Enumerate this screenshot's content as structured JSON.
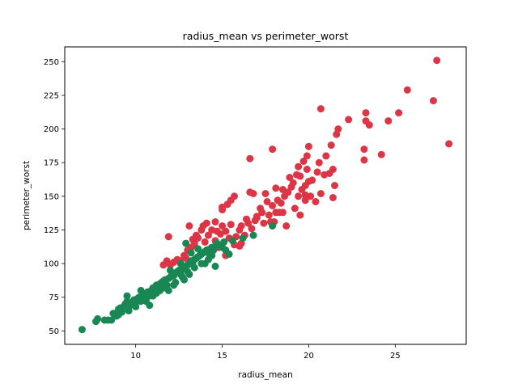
{
  "chart_data": {
    "type": "scatter",
    "title": "radius_mean vs perimeter_worst",
    "xlabel": "radius_mean",
    "ylabel": "perimeter_worst",
    "xlim": [
      5.9,
      29.1
    ],
    "ylim": [
      40,
      261
    ],
    "xticks": [
      10,
      15,
      20,
      25
    ],
    "yticks": [
      50,
      75,
      100,
      125,
      150,
      175,
      200,
      225,
      250
    ],
    "grid": false,
    "series": [
      {
        "color": "#dc3545",
        "points": [
          [
            27.4,
            251
          ],
          [
            25.7,
            229
          ],
          [
            27.2,
            221
          ],
          [
            28.1,
            189
          ],
          [
            25.2,
            212
          ],
          [
            24.6,
            206
          ],
          [
            24.2,
            181
          ],
          [
            23.3,
            212
          ],
          [
            23.5,
            203
          ],
          [
            23.3,
            206
          ],
          [
            23.2,
            185
          ],
          [
            23.2,
            177
          ],
          [
            22.3,
            207
          ],
          [
            21.7,
            200
          ],
          [
            21.6,
            196
          ],
          [
            21.3,
            188
          ],
          [
            21.0,
            180
          ],
          [
            20.7,
            215
          ],
          [
            20.6,
            175
          ],
          [
            20.5,
            168
          ],
          [
            20.9,
            166
          ],
          [
            21.2,
            167
          ],
          [
            21.4,
            170
          ],
          [
            21.5,
            158
          ],
          [
            21.4,
            149
          ],
          [
            20.2,
            162
          ],
          [
            20.0,
            161
          ],
          [
            19.8,
            158
          ],
          [
            19.9,
            170
          ],
          [
            19.9,
            180
          ],
          [
            20.0,
            187
          ],
          [
            19.7,
            176
          ],
          [
            19.5,
            165
          ],
          [
            19.3,
            166
          ],
          [
            19.1,
            160
          ],
          [
            19.4,
            172
          ],
          [
            19.6,
            155
          ],
          [
            19.4,
            150
          ],
          [
            19.8,
            151
          ],
          [
            20.1,
            150
          ],
          [
            20.4,
            146
          ],
          [
            20.7,
            152
          ],
          [
            19.0,
            157
          ],
          [
            18.9,
            164
          ],
          [
            18.8,
            153
          ],
          [
            18.6,
            150
          ],
          [
            18.4,
            145
          ],
          [
            18.2,
            147
          ],
          [
            18.1,
            138
          ],
          [
            17.9,
            143
          ],
          [
            17.7,
            136
          ],
          [
            17.5,
            152
          ],
          [
            17.6,
            146
          ],
          [
            17.3,
            138
          ],
          [
            17.2,
            141
          ],
          [
            17.0,
            135
          ],
          [
            16.9,
            132
          ],
          [
            16.7,
            126
          ],
          [
            16.5,
            130
          ],
          [
            16.3,
            121
          ],
          [
            16.1,
            128
          ],
          [
            16.0,
            125
          ],
          [
            16.1,
            115
          ],
          [
            16.8,
            152
          ],
          [
            16.6,
            153
          ],
          [
            17.9,
            185
          ],
          [
            16.6,
            178
          ],
          [
            18.1,
            156
          ],
          [
            18.3,
            138
          ],
          [
            18.5,
            155
          ],
          [
            19.2,
            141
          ],
          [
            19.5,
            136
          ],
          [
            19.8,
            147
          ],
          [
            18.0,
            131
          ],
          [
            18.7,
            128
          ],
          [
            18.5,
            138
          ],
          [
            17.4,
            130
          ],
          [
            17.8,
            131
          ],
          [
            17.0,
            134
          ],
          [
            16.4,
            133
          ],
          [
            15.8,
            120
          ],
          [
            15.7,
            114
          ],
          [
            15.4,
            119
          ],
          [
            15.2,
            124
          ],
          [
            15.5,
            129
          ],
          [
            15.0,
            128
          ],
          [
            14.9,
            122
          ],
          [
            14.7,
            124
          ],
          [
            14.6,
            117
          ],
          [
            15.0,
            140
          ],
          [
            15.3,
            144
          ],
          [
            15.5,
            147
          ],
          [
            15.7,
            150
          ],
          [
            14.6,
            131
          ],
          [
            14.4,
            125
          ],
          [
            14.2,
            121
          ],
          [
            14.0,
            116
          ],
          [
            13.8,
            125
          ],
          [
            13.9,
            128
          ],
          [
            13.6,
            119
          ],
          [
            13.4,
            115
          ],
          [
            13.2,
            112
          ],
          [
            13.0,
            110
          ],
          [
            12.8,
            106
          ],
          [
            12.6,
            102
          ],
          [
            12.4,
            103
          ],
          [
            12.2,
            101
          ],
          [
            12.0,
            99
          ],
          [
            11.8,
            102
          ],
          [
            11.9,
            120
          ],
          [
            13.1,
            128
          ],
          [
            13.5,
            121
          ],
          [
            14.8,
            112
          ],
          [
            15.2,
            106
          ],
          [
            16.0,
            113
          ],
          [
            11.6,
            99
          ],
          [
            12.9,
            104
          ],
          [
            13.3,
            118
          ],
          [
            14.1,
            130
          ],
          [
            15.0,
            142
          ]
        ]
      },
      {
        "color": "#198754",
        "points": [
          [
            6.9,
            51
          ],
          [
            7.7,
            57
          ],
          [
            7.8,
            59
          ],
          [
            8.2,
            58
          ],
          [
            8.6,
            58
          ],
          [
            8.7,
            63
          ],
          [
            8.8,
            62
          ],
          [
            8.9,
            61
          ],
          [
            9.0,
            66
          ],
          [
            9.1,
            67
          ],
          [
            9.2,
            64
          ],
          [
            9.3,
            68
          ],
          [
            9.4,
            70
          ],
          [
            9.5,
            72
          ],
          [
            9.6,
            65
          ],
          [
            9.7,
            69
          ],
          [
            9.8,
            70
          ],
          [
            9.9,
            73
          ],
          [
            10.0,
            71
          ],
          [
            10.1,
            74
          ],
          [
            10.2,
            75
          ],
          [
            10.3,
            72
          ],
          [
            10.4,
            76
          ],
          [
            10.5,
            77
          ],
          [
            10.6,
            78
          ],
          [
            10.7,
            79
          ],
          [
            10.8,
            76
          ],
          [
            10.9,
            80
          ],
          [
            11.0,
            82
          ],
          [
            11.1,
            81
          ],
          [
            11.2,
            84
          ],
          [
            11.3,
            83
          ],
          [
            11.4,
            85
          ],
          [
            11.5,
            86
          ],
          [
            11.6,
            87
          ],
          [
            11.7,
            88
          ],
          [
            11.8,
            84
          ],
          [
            11.9,
            89
          ],
          [
            12.0,
            90
          ],
          [
            12.1,
            92
          ],
          [
            12.2,
            91
          ],
          [
            12.3,
            93
          ],
          [
            12.4,
            94
          ],
          [
            12.5,
            95
          ],
          [
            12.6,
            92
          ],
          [
            12.7,
            96
          ],
          [
            12.8,
            97
          ],
          [
            12.9,
            98
          ],
          [
            13.0,
            99
          ],
          [
            13.1,
            100
          ],
          [
            13.2,
            102
          ],
          [
            13.3,
            101
          ],
          [
            13.4,
            103
          ],
          [
            13.5,
            104
          ],
          [
            13.6,
            105
          ],
          [
            13.7,
            106
          ],
          [
            13.8,
            107
          ],
          [
            13.9,
            108
          ],
          [
            14.0,
            109
          ],
          [
            14.1,
            110
          ],
          [
            14.2,
            108
          ],
          [
            14.3,
            111
          ],
          [
            14.4,
            112
          ],
          [
            14.5,
            110
          ],
          [
            14.6,
            113
          ],
          [
            14.7,
            115
          ],
          [
            14.8,
            114
          ],
          [
            15.0,
            112
          ],
          [
            15.1,
            116
          ],
          [
            15.4,
            107
          ],
          [
            15.6,
            117
          ],
          [
            16.2,
            119
          ],
          [
            16.8,
            121
          ],
          [
            17.9,
            128
          ],
          [
            9.5,
            76
          ],
          [
            10.0,
            68
          ],
          [
            10.6,
            72
          ],
          [
            11.0,
            76
          ],
          [
            11.4,
            80
          ],
          [
            11.9,
            80
          ],
          [
            12.3,
            86
          ],
          [
            12.8,
            88
          ],
          [
            13.0,
            94
          ],
          [
            13.4,
            97
          ],
          [
            13.8,
            100
          ],
          [
            12.0,
            95
          ],
          [
            12.6,
            100
          ],
          [
            13.2,
            108
          ],
          [
            12.9,
            115
          ],
          [
            13.6,
            111
          ],
          [
            14.2,
            103
          ],
          [
            14.6,
            98
          ],
          [
            10.3,
            80
          ],
          [
            9.0,
            62
          ],
          [
            8.4,
            58
          ],
          [
            10.8,
            69
          ],
          [
            11.2,
            78
          ],
          [
            11.6,
            82
          ],
          [
            12.2,
            84
          ],
          [
            12.7,
            90
          ],
          [
            13.1,
            92
          ],
          [
            14.0,
            100
          ],
          [
            14.4,
            106
          ],
          [
            15.2,
            110
          ]
        ]
      }
    ]
  }
}
